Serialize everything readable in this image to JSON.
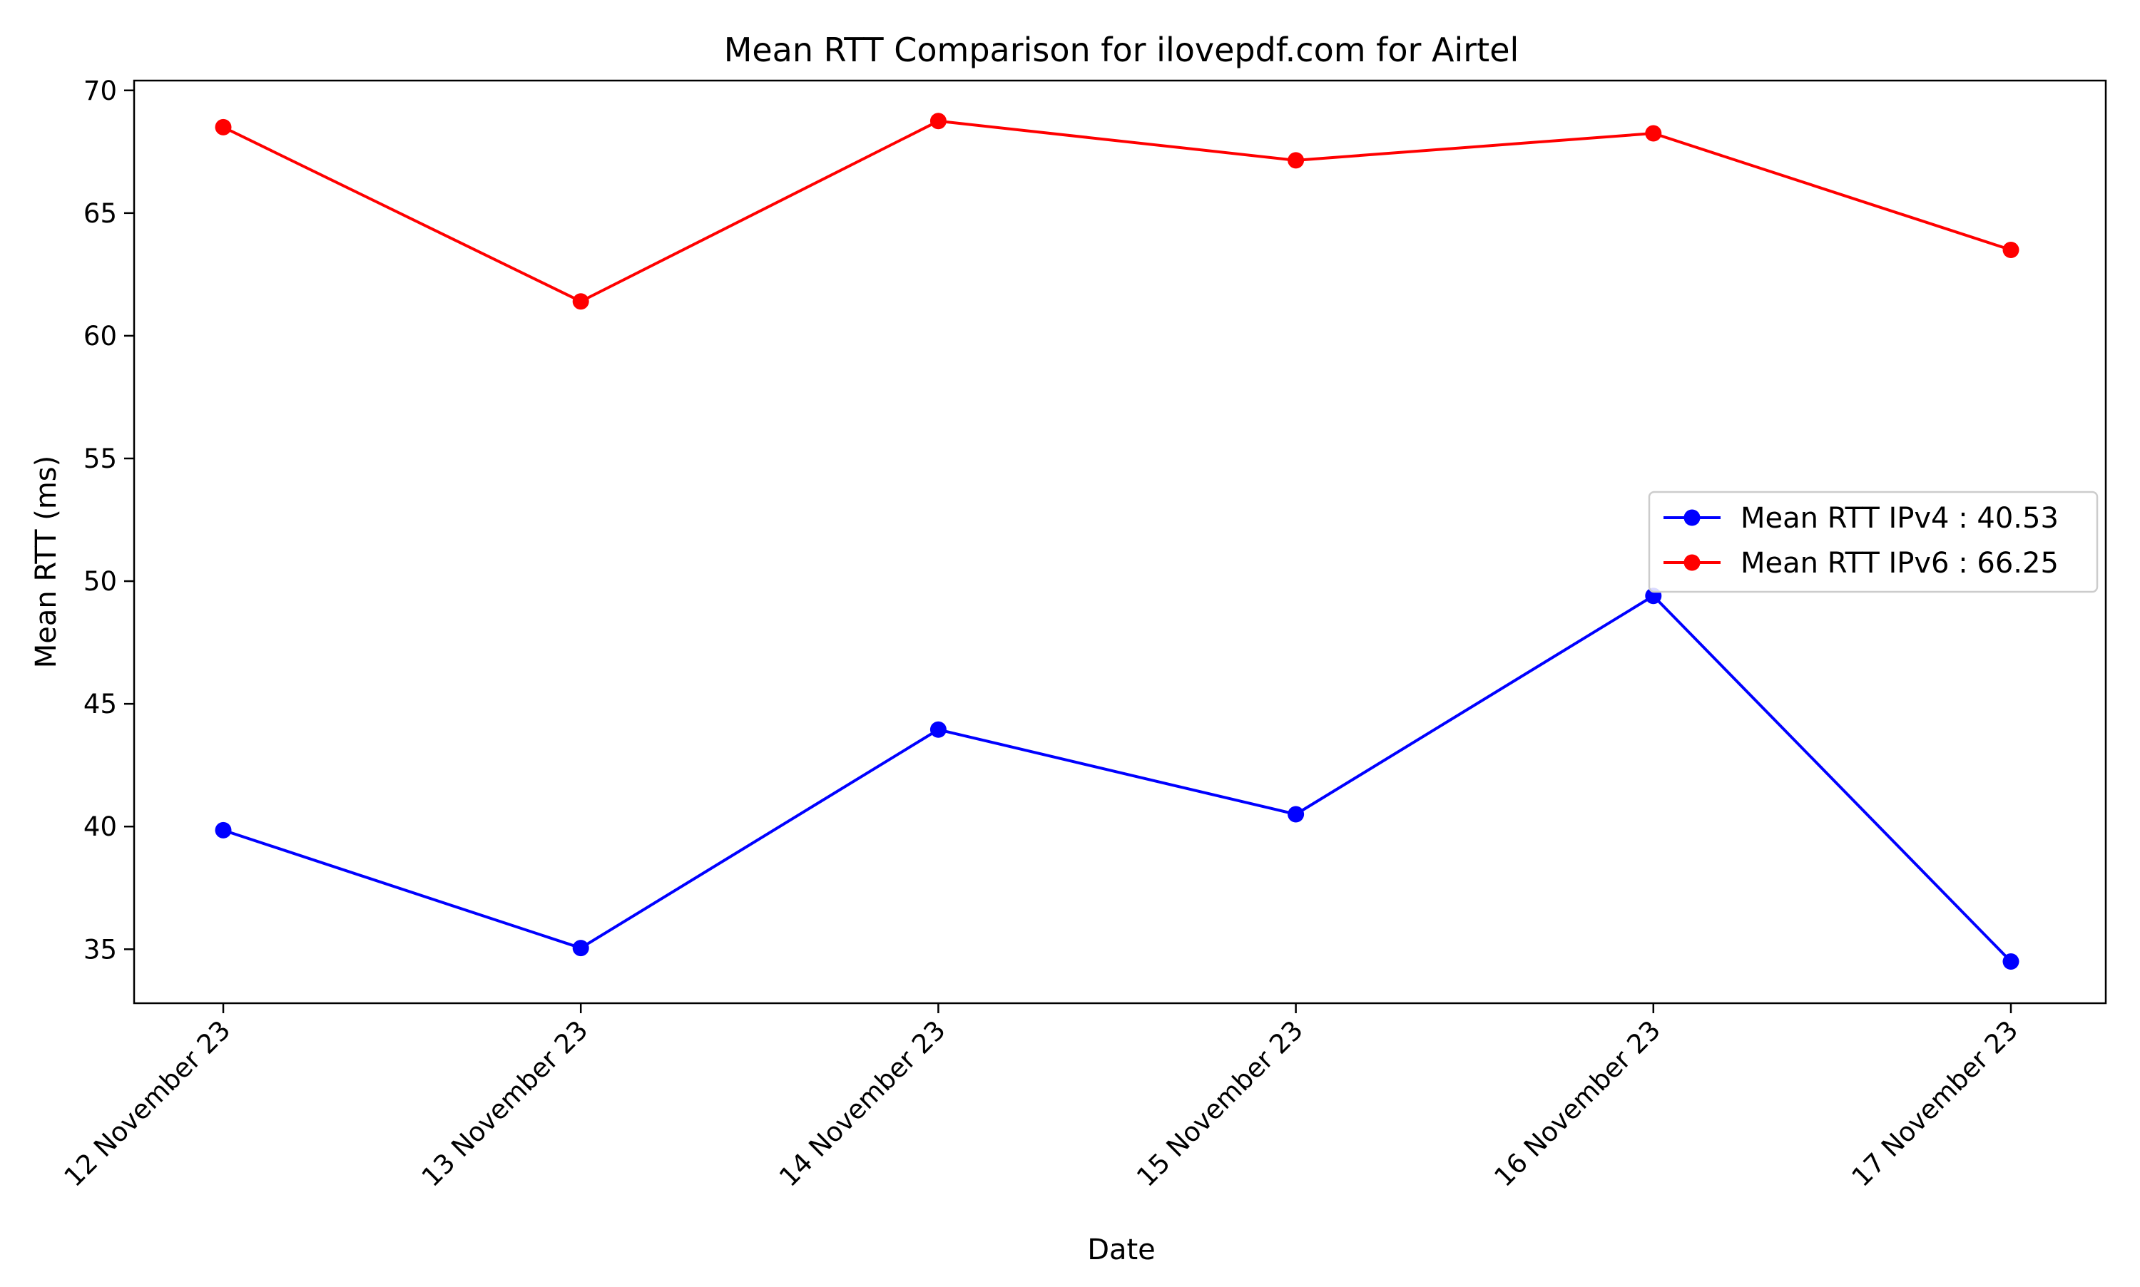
{
  "chart_data": {
    "type": "line",
    "title": "Mean RTT Comparison for ilovepdf.com for Airtel",
    "xlabel": "Date",
    "ylabel": "Mean RTT (ms)",
    "categories": [
      "12 November 23",
      "13 November 23",
      "14 November 23",
      "15 November 23",
      "16 November 23",
      "17 November 23"
    ],
    "ylim": [
      32.8,
      70.4
    ],
    "yticks": [
      35,
      40,
      45,
      50,
      55,
      60,
      65,
      70
    ],
    "grid": false,
    "legend_position": "center-right",
    "series": [
      {
        "name": "Mean RTT IPv4 : 40.53",
        "color": "#0000ff",
        "values": [
          39.85,
          35.05,
          43.95,
          40.5,
          49.4,
          34.5
        ]
      },
      {
        "name": "Mean RTT IPv6 : 66.25",
        "color": "#ff0000",
        "values": [
          68.5,
          61.4,
          68.75,
          67.15,
          68.25,
          63.5
        ]
      }
    ]
  }
}
